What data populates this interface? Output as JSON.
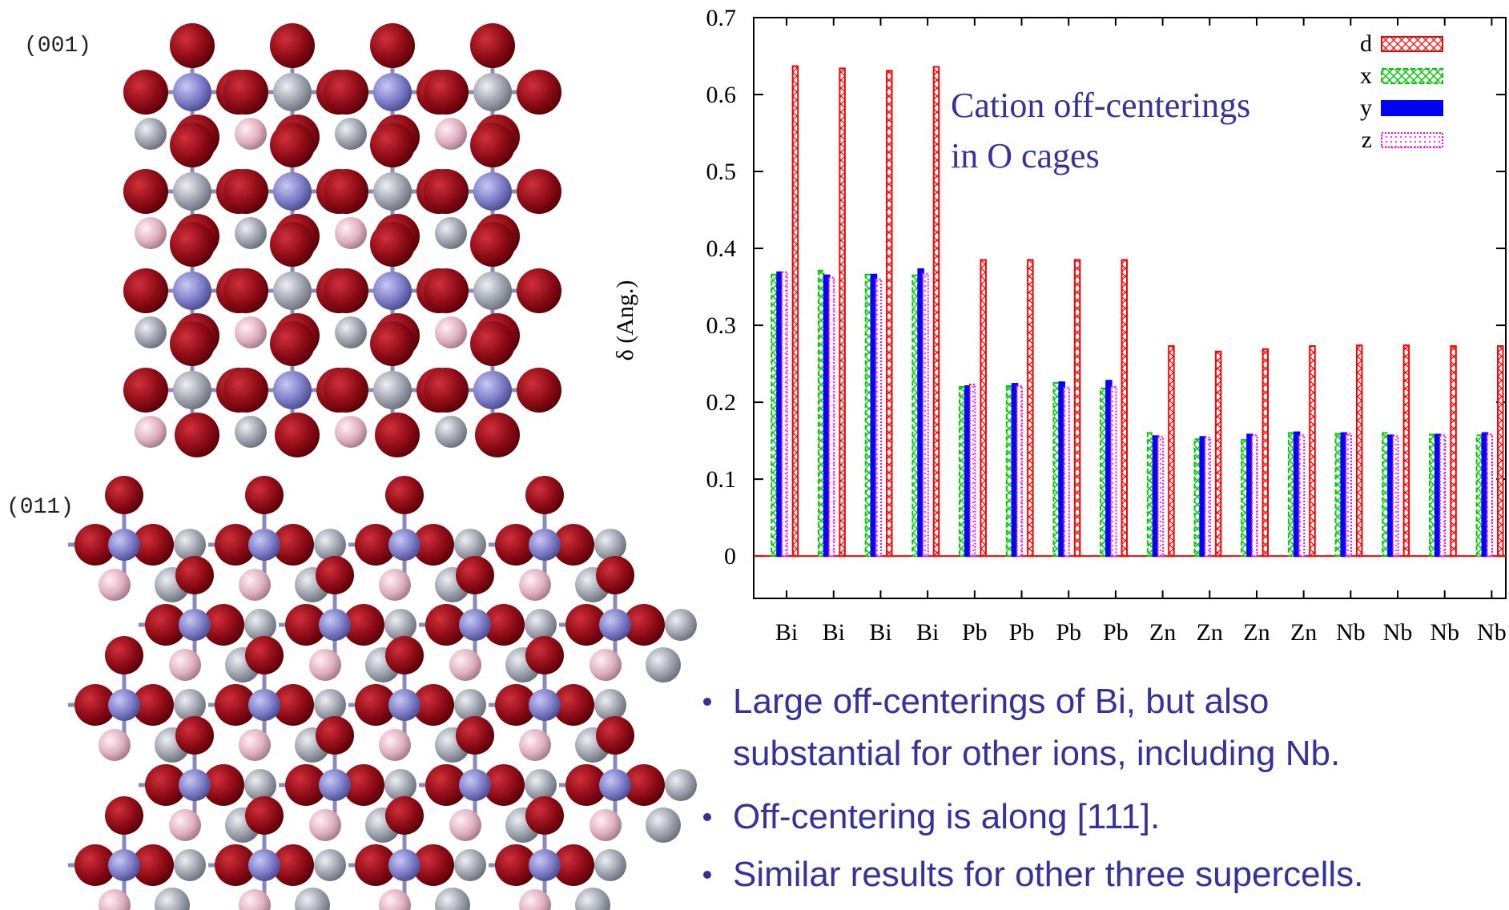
{
  "structures": [
    {
      "label": "(001)"
    },
    {
      "label": "(011)"
    }
  ],
  "chart_data": {
    "type": "bar",
    "ylabel": "δ (Ang.)",
    "annotation": [
      "Cation off-centerings",
      "in O cages"
    ],
    "categories": [
      "Bi",
      "Bi",
      "Bi",
      "Bi",
      "Pb",
      "Pb",
      "Pb",
      "Pb",
      "Zn",
      "Zn",
      "Zn",
      "Zn",
      "Nb",
      "Nb",
      "Nb",
      "Nb"
    ],
    "series": [
      {
        "name": "d",
        "color": "#ff0000",
        "values": [
          0.637,
          0.634,
          0.631,
          0.636,
          0.385,
          0.385,
          0.385,
          0.385,
          0.273,
          0.266,
          0.269,
          0.273,
          0.274,
          0.274,
          0.273,
          0.273
        ]
      },
      {
        "name": "x",
        "color": "#00cc00",
        "values": [
          0.366,
          0.371,
          0.366,
          0.365,
          0.22,
          0.221,
          0.225,
          0.218,
          0.16,
          0.152,
          0.151,
          0.16,
          0.159,
          0.16,
          0.158,
          0.157
        ]
      },
      {
        "name": "y",
        "color": "#0000ff",
        "values": [
          0.369,
          0.365,
          0.366,
          0.373,
          0.221,
          0.224,
          0.226,
          0.228,
          0.156,
          0.155,
          0.158,
          0.161,
          0.16,
          0.157,
          0.158,
          0.16
        ]
      },
      {
        "name": "z",
        "color": "#ff00ff",
        "values": [
          0.369,
          0.362,
          0.36,
          0.367,
          0.223,
          0.221,
          0.219,
          0.22,
          0.155,
          0.154,
          0.157,
          0.157,
          0.159,
          0.156,
          0.157,
          0.158
        ]
      }
    ],
    "ylim": [
      -0.055,
      0.7
    ],
    "yticks": [
      0,
      0.1,
      0.2,
      0.3,
      0.4,
      0.5,
      0.6,
      0.7
    ],
    "legend": "upper right"
  },
  "bullets": [
    "Large off-centerings of Bi, but also",
    "substantial for other ions, including Nb.",
    "Off-centering is along [111].",
    "Similar results for other three supercells."
  ]
}
